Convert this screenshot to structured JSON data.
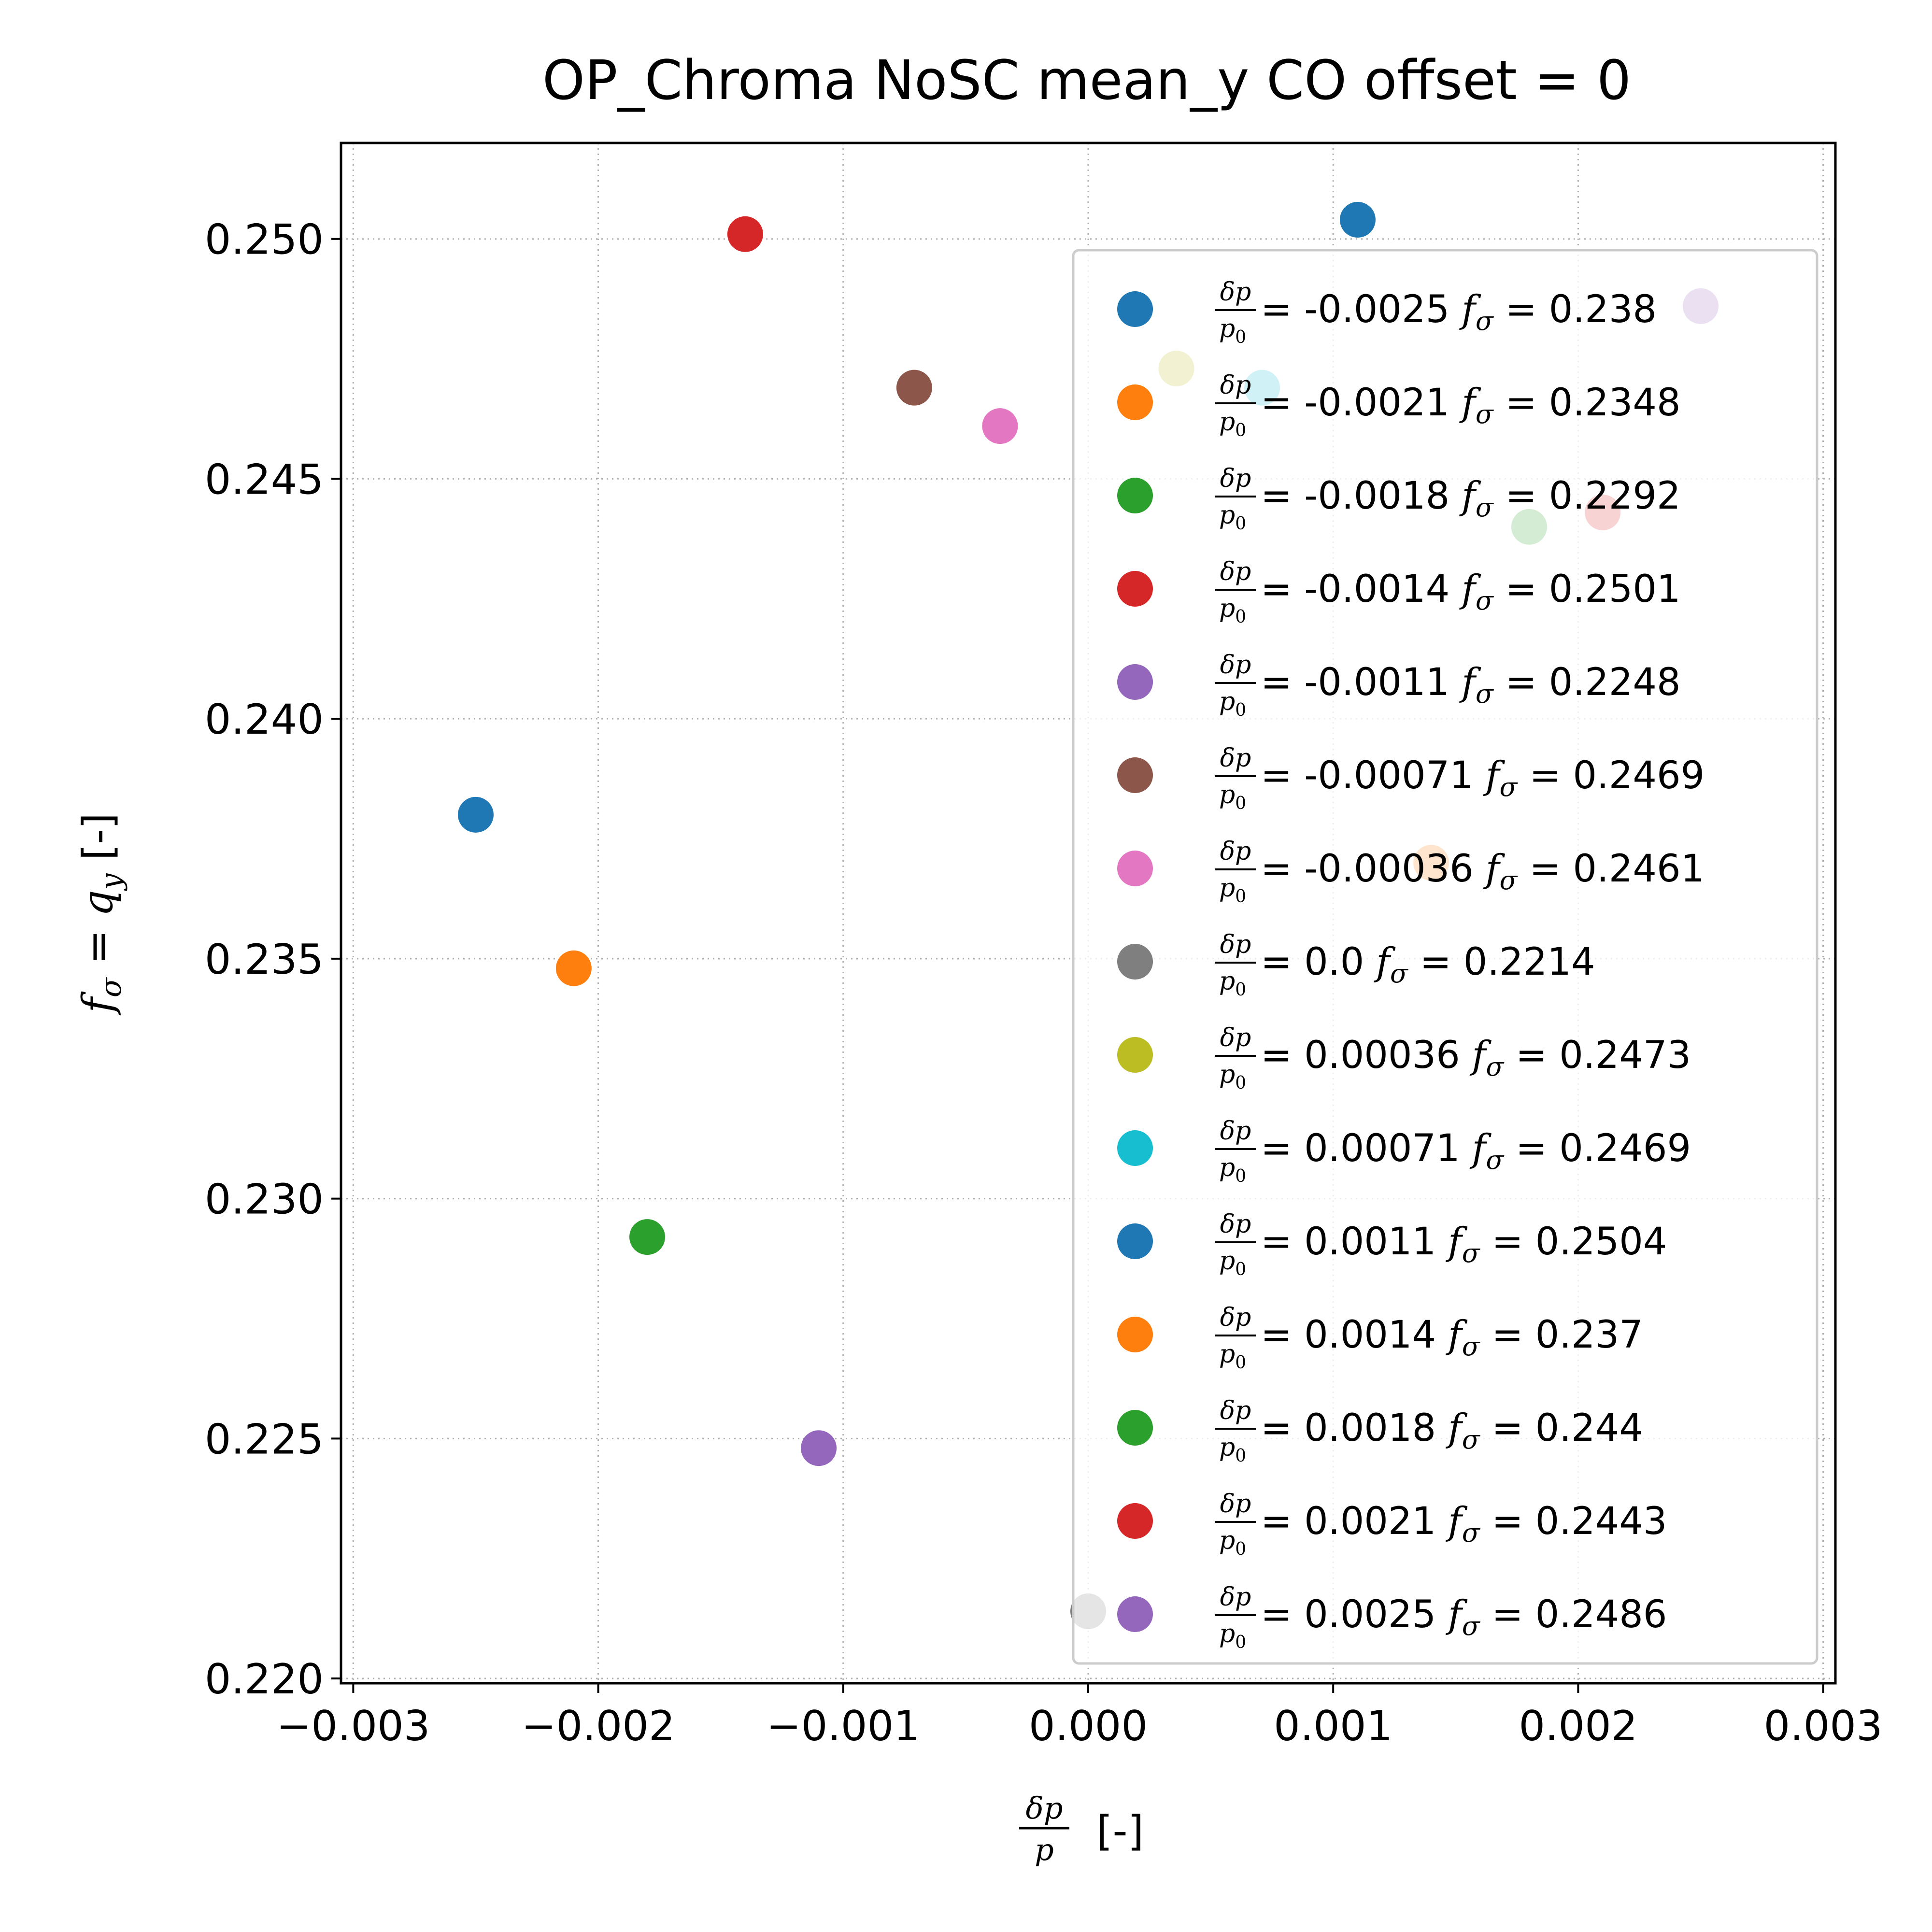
{
  "chart_data": {
    "type": "scatter",
    "title": "OP_Chroma NoSC mean_y CO offset = 0",
    "xlim": [
      -0.00305,
      0.00305
    ],
    "ylim": [
      0.2199,
      0.252
    ],
    "x_ticks": [
      -0.003,
      -0.002,
      -0.001,
      0.0,
      0.001,
      0.002,
      0.003
    ],
    "x_tick_labels": [
      "−0.003",
      "−0.002",
      "−0.001",
      "0.000",
      "0.001",
      "0.002",
      "0.003"
    ],
    "y_ticks": [
      0.22,
      0.225,
      0.23,
      0.235,
      0.24,
      0.245,
      0.25
    ],
    "y_tick_labels": [
      "0.220",
      "0.225",
      "0.230",
      "0.235",
      "0.240",
      "0.245",
      "0.250"
    ],
    "grid": true,
    "legend_position": "right",
    "series": [
      {
        "x": -0.0025,
        "y": 0.238,
        "color": "#1f77b4",
        "legend": {
          "dp": "-0.0025",
          "f": "0.238"
        }
      },
      {
        "x": -0.0021,
        "y": 0.2348,
        "color": "#ff7f0e",
        "legend": {
          "dp": "-0.0021",
          "f": "0.2348"
        }
      },
      {
        "x": -0.0018,
        "y": 0.2292,
        "color": "#2ca02c",
        "legend": {
          "dp": "-0.0018",
          "f": "0.2292"
        }
      },
      {
        "x": -0.0014,
        "y": 0.2501,
        "color": "#d62728",
        "legend": {
          "dp": "-0.0014",
          "f": "0.2501"
        }
      },
      {
        "x": -0.0011,
        "y": 0.2248,
        "color": "#9467bd",
        "legend": {
          "dp": "-0.0011",
          "f": "0.2248"
        }
      },
      {
        "x": -0.00071,
        "y": 0.2469,
        "color": "#8c564b",
        "legend": {
          "dp": "-0.00071",
          "f": "0.2469"
        }
      },
      {
        "x": -0.00036,
        "y": 0.2461,
        "color": "#e377c2",
        "legend": {
          "dp": "-0.00036",
          "f": "0.2461"
        }
      },
      {
        "x": 0.0,
        "y": 0.2214,
        "color": "#7f7f7f",
        "legend": {
          "dp": "0.0",
          "f": "0.2214"
        }
      },
      {
        "x": 0.00036,
        "y": 0.2473,
        "color": "#bcbd22",
        "legend": {
          "dp": "0.00036",
          "f": "0.2473"
        }
      },
      {
        "x": 0.00071,
        "y": 0.2469,
        "color": "#17becf",
        "legend": {
          "dp": "0.00071",
          "f": "0.2469"
        }
      },
      {
        "x": 0.0011,
        "y": 0.2504,
        "color": "#1f77b4",
        "legend": {
          "dp": "0.0011",
          "f": "0.2504"
        }
      },
      {
        "x": 0.0014,
        "y": 0.237,
        "color": "#ff7f0e",
        "legend": {
          "dp": "0.0014",
          "f": "0.237"
        }
      },
      {
        "x": 0.0018,
        "y": 0.244,
        "color": "#2ca02c",
        "legend": {
          "dp": "0.0018",
          "f": "0.244"
        }
      },
      {
        "x": 0.0021,
        "y": 0.2443,
        "color": "#d62728",
        "legend": {
          "dp": "0.0021",
          "f": "0.2443"
        }
      },
      {
        "x": 0.0025,
        "y": 0.2486,
        "color": "#9467bd",
        "legend": {
          "dp": "0.0025",
          "f": "0.2486"
        }
      }
    ]
  }
}
